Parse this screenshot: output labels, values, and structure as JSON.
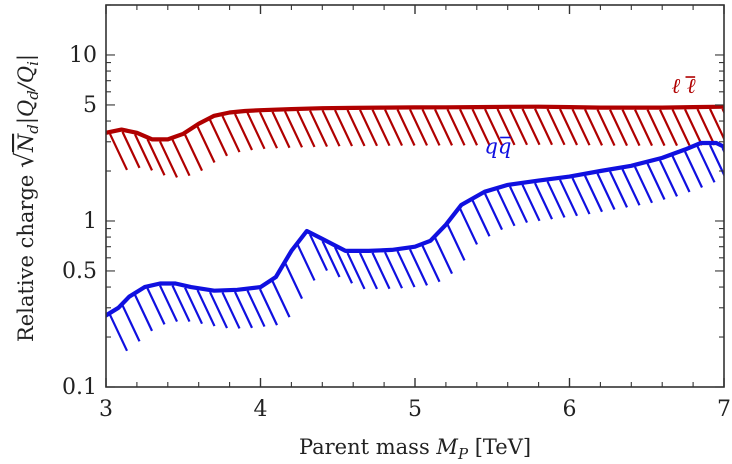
{
  "chart_data": {
    "type": "line",
    "xlabel": "Parent mass M_P [TeV]",
    "xlabel_parts": [
      "Parent mass ",
      "M",
      "P",
      " [TeV]"
    ],
    "ylabel": "Relative charge √N_d |Q_d/Q_i|",
    "ylabel_parts": [
      "Relative charge ",
      "√",
      "N",
      "d",
      "|Q",
      "d",
      "/Q",
      "i",
      "|"
    ],
    "xlim": [
      3,
      7
    ],
    "ylim": [
      0.1,
      20
    ],
    "yscale": "log",
    "x_ticks": [
      "3",
      "4",
      "5",
      "6",
      "7"
    ],
    "y_ticks": [
      "0.1",
      "0.5",
      "1",
      "5",
      "10"
    ],
    "y_tick_values": [
      0.1,
      0.5,
      1,
      5,
      10
    ],
    "grid": false,
    "series": [
      {
        "name": "ℓ ℓ̄",
        "label": "ℓ ℓ",
        "color": "#b00000",
        "hatch": "below",
        "x": [
          3.0,
          3.1,
          3.2,
          3.3,
          3.4,
          3.5,
          3.6,
          3.7,
          3.8,
          3.9,
          4.0,
          4.2,
          4.4,
          4.6,
          4.8,
          5.0,
          5.2,
          5.4,
          5.6,
          5.8,
          6.0,
          6.2,
          6.4,
          6.6,
          6.8,
          7.0
        ],
        "y": [
          3.4,
          3.55,
          3.4,
          3.1,
          3.1,
          3.35,
          3.85,
          4.3,
          4.5,
          4.6,
          4.65,
          4.72,
          4.78,
          4.8,
          4.82,
          4.83,
          4.84,
          4.85,
          4.87,
          4.88,
          4.85,
          4.82,
          4.82,
          4.82,
          4.85,
          4.88
        ]
      },
      {
        "name": "qq̄",
        "label": "qq",
        "color": "#1010e0",
        "hatch": "below",
        "x": [
          3.0,
          3.08,
          3.15,
          3.25,
          3.35,
          3.45,
          3.55,
          3.7,
          3.85,
          4.0,
          4.1,
          4.2,
          4.3,
          4.4,
          4.55,
          4.7,
          4.85,
          5.0,
          5.1,
          5.2,
          5.3,
          5.45,
          5.6,
          5.8,
          6.0,
          6.2,
          6.4,
          6.6,
          6.75,
          6.85,
          6.95,
          7.0
        ],
        "y": [
          0.27,
          0.3,
          0.35,
          0.4,
          0.42,
          0.42,
          0.4,
          0.38,
          0.385,
          0.4,
          0.46,
          0.66,
          0.87,
          0.78,
          0.66,
          0.66,
          0.67,
          0.7,
          0.76,
          0.95,
          1.25,
          1.5,
          1.65,
          1.75,
          1.85,
          2.0,
          2.15,
          2.4,
          2.7,
          2.95,
          2.95,
          2.8
        ]
      }
    ]
  }
}
